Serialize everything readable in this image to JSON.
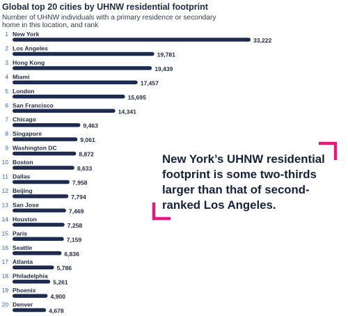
{
  "title": "Global top 20 cities by UHNW residential footprint",
  "subtitle": "Number of UHNW individuals with a primary residence or secondary home in this location, and rank",
  "callout": "New York’s UHNW residential footprint is some two-thirds larger than that of second-ranked Los Angeles.",
  "colors": {
    "bar": "#1d2b50",
    "rank": "#2f6fb6",
    "accent": "#e6197d"
  },
  "chart_data": {
    "type": "bar",
    "orientation": "horizontal",
    "title": "Global top 20 cities by UHNW residential footprint",
    "subtitle": "Number of UHNW individuals with a primary residence or secondary home in this location, and rank",
    "categories": [
      "New York",
      "Los Angeles",
      "Hong Kong",
      "Miami",
      "London",
      "San Francisco",
      "Chicago",
      "Singapore",
      "Washington DC",
      "Boston",
      "Dallas",
      "Beijing",
      "San Jose",
      "Houston",
      "Paris",
      "Seattle",
      "Atlanta",
      "Philadelphia",
      "Phoenix",
      "Denver"
    ],
    "ranks": [
      "1",
      "2",
      "3",
      "4",
      "5",
      "6",
      "7",
      "8",
      "9",
      "10",
      "11",
      "12",
      "13",
      "14",
      "15",
      "16",
      "17",
      "18",
      "19",
      "20"
    ],
    "values": [
      33222,
      19781,
      19439,
      17457,
      15695,
      14341,
      9463,
      9061,
      8872,
      8633,
      7958,
      7794,
      7469,
      7258,
      7159,
      6836,
      5786,
      5261,
      4900,
      4678
    ],
    "value_labels": [
      "33,222",
      "19,781",
      "19,439",
      "17,457",
      "15,695",
      "14,341",
      "9,463",
      "9,061",
      "8,872",
      "8,633",
      "7,958",
      "7,794",
      "7,469",
      "7,258",
      "7,159",
      "6,836",
      "5,786",
      "5,261",
      "4,900",
      "4,678"
    ],
    "xlim": [
      0,
      33222
    ],
    "grid": false,
    "legend": "none"
  }
}
